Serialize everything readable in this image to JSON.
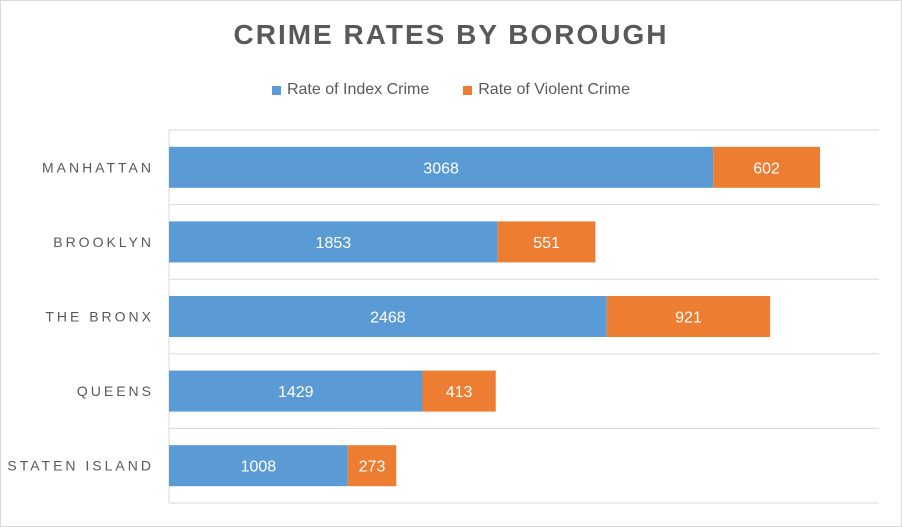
{
  "chart_data": {
    "type": "bar",
    "orientation": "horizontal",
    "stacked": true,
    "title": "CRIME RATES BY BOROUGH",
    "categories": [
      "MANHATTAN",
      "BROOKLYN",
      "THE BRONX",
      "QUEENS",
      "STATEN ISLAND"
    ],
    "series": [
      {
        "name": "Rate of Index Crime",
        "color": "#5b9bd5",
        "values": [
          3068,
          1853,
          2468,
          1429,
          1008
        ]
      },
      {
        "name": "Rate of Violent Crime",
        "color": "#ed7d31",
        "values": [
          602,
          551,
          921,
          413,
          273
        ]
      }
    ],
    "xlim": [
      0,
      4000
    ],
    "grid": true,
    "legend": "top-center",
    "data_labels": true
  }
}
